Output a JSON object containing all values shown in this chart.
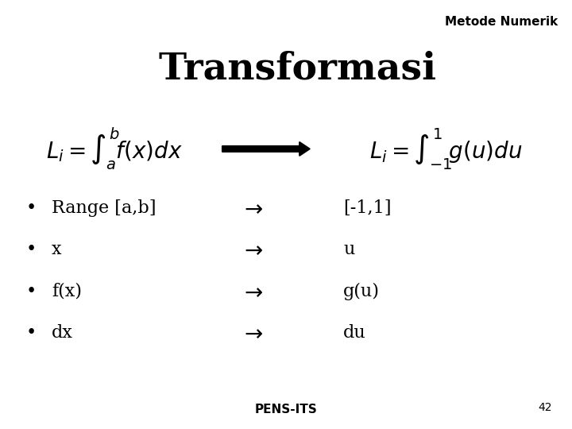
{
  "title": "Transformasi",
  "header_text": "Metode Numerik",
  "header_bg": "#c8d0d8",
  "slide_bg": "#ffffff",
  "content_bg": "#ffffff",
  "footer_bg": "#c8d0d8",
  "footer_text": "PENS-ITS",
  "page_number": "42",
  "title_color": "#000000",
  "title_fontsize": 34,
  "header_fontsize": 11,
  "bullet_items": [
    "Range [a,b]",
    "x",
    "f(x)",
    "dx"
  ],
  "bullet_results": [
    "[-1,1]",
    "u",
    "g(u)",
    "du"
  ],
  "bullet_fontsize": 16,
  "formula_fontsize": 20,
  "logo_blue": "#2060a0",
  "its_text_color": "#2060a0"
}
